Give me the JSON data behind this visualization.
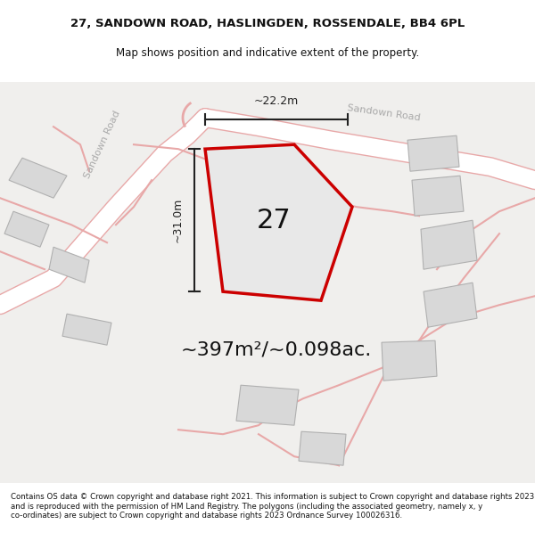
{
  "title_line1": "27, SANDOWN ROAD, HASLINGDEN, ROSSENDALE, BB4 6PL",
  "title_line2": "Map shows position and indicative extent of the property.",
  "area_label": "~397m²/~0.098ac.",
  "height_label": "~31.0m",
  "width_label": "~22.2m",
  "number_label": "27",
  "footer_text": "Contains OS data © Crown copyright and database right 2021. This information is subject to Crown copyright and database rights 2023 and is reproduced with the permission of HM Land Registry. The polygons (including the associated geometry, namely x, y co-ordinates) are subject to Crown copyright and database rights 2023 Ordnance Survey 100026316.",
  "bg_color": "#f5f5f5",
  "map_bg": "#f0efed",
  "road_color_light": "#e8a8a8",
  "road_color_mid": "#d08080",
  "building_fill": "#d8d8d8",
  "building_edge": "#b0b0b0",
  "plot_fill": "#e8e8e8",
  "plot_edge": "#cc0000",
  "dim_line_color": "#222222",
  "text_dark": "#111111",
  "road_label_color": "#aaaaaa",
  "footer_color": "#111111"
}
